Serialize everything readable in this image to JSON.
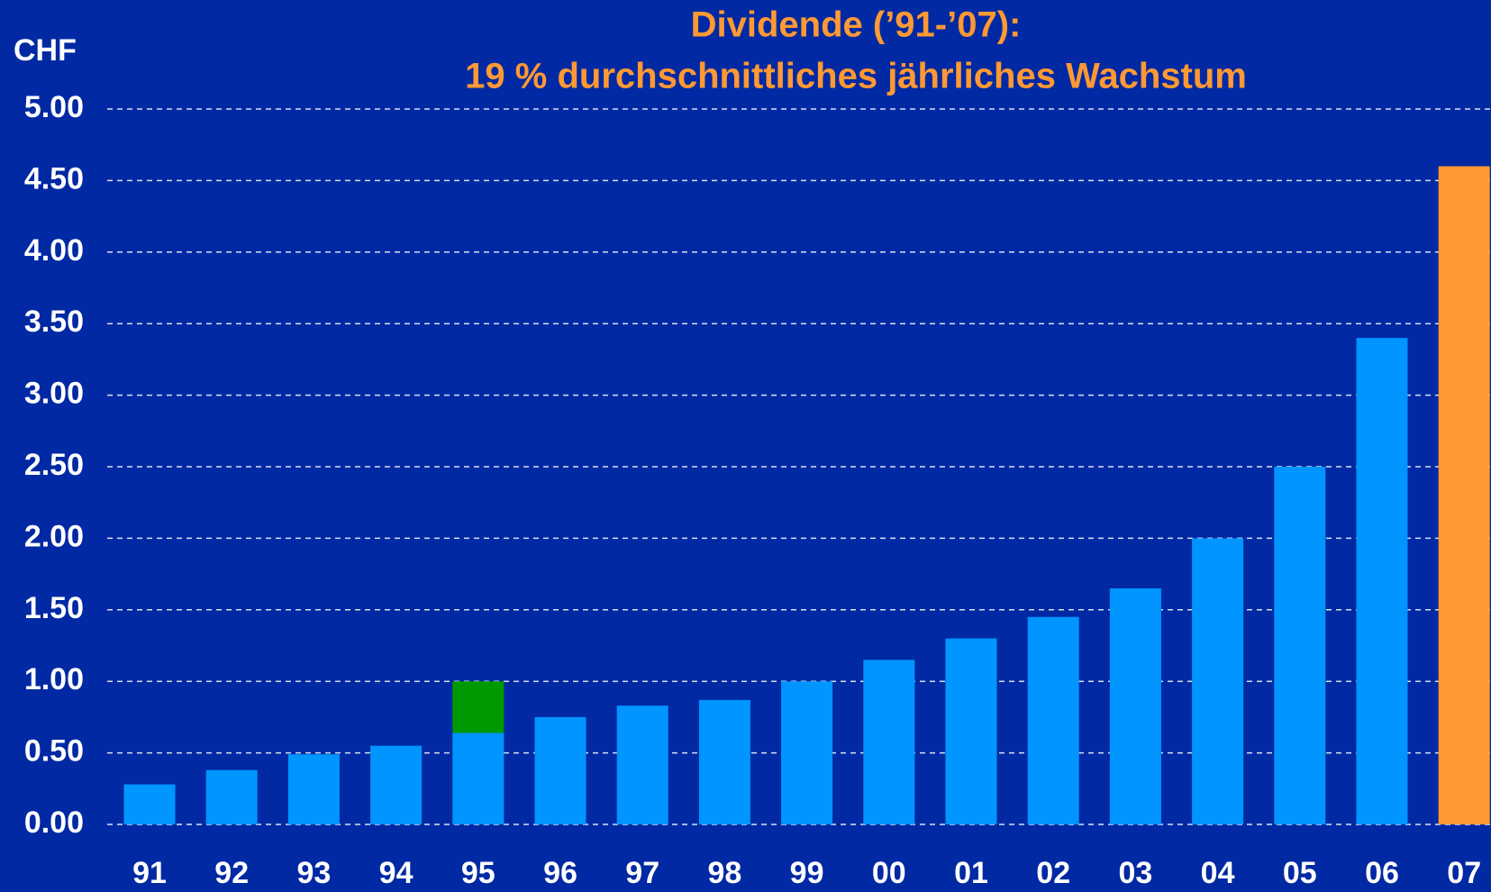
{
  "chart_data": {
    "type": "bar",
    "title": "Dividende (’91-’07):",
    "subtitle": "19 % durchschnittliches jährliches Wachstum",
    "y_label": "CHF",
    "categories": [
      "91",
      "92",
      "93",
      "94",
      "95",
      "96",
      "97",
      "98",
      "99",
      "00",
      "01",
      "02",
      "03",
      "04",
      "05",
      "06",
      "07"
    ],
    "series": [
      {
        "color": "#0095ff",
        "colors": [
          "#0095ff",
          "#0095ff",
          "#0095ff",
          "#0095ff",
          "#0095ff",
          "#0095ff",
          "#0095ff",
          "#0095ff",
          "#0095ff",
          "#0095ff",
          "#0095ff",
          "#0095ff",
          "#0095ff",
          "#0095ff",
          "#0095ff",
          "#0095ff",
          "#ff9933"
        ],
        "values": [
          0.28,
          0.38,
          0.49,
          0.55,
          0.64,
          0.75,
          0.83,
          0.87,
          1.0,
          1.15,
          1.3,
          1.45,
          1.65,
          2.0,
          2.5,
          3.4,
          4.6
        ]
      },
      {
        "color": "#009900",
        "values": [
          null,
          null,
          null,
          null,
          0.36,
          null,
          null,
          null,
          null,
          null,
          null,
          null,
          null,
          null,
          null,
          null,
          null
        ]
      }
    ],
    "stacked": true,
    "ylim": [
      0,
      5
    ],
    "yticks": [
      {
        "value": 0,
        "label": "0.00"
      },
      {
        "value": 0.5,
        "label": "0.50"
      },
      {
        "value": 1,
        "label": "1.00"
      },
      {
        "value": 1.5,
        "label": "1.50"
      },
      {
        "value": 2,
        "label": "2.00"
      },
      {
        "value": 2.5,
        "label": "2.50"
      },
      {
        "value": 3,
        "label": "3.00"
      },
      {
        "value": 3.5,
        "label": "3.50"
      },
      {
        "value": 4,
        "label": "4.00"
      },
      {
        "value": 4.5,
        "label": "4.50"
      },
      {
        "value": 5,
        "label": "5.00"
      }
    ],
    "grid": true
  }
}
